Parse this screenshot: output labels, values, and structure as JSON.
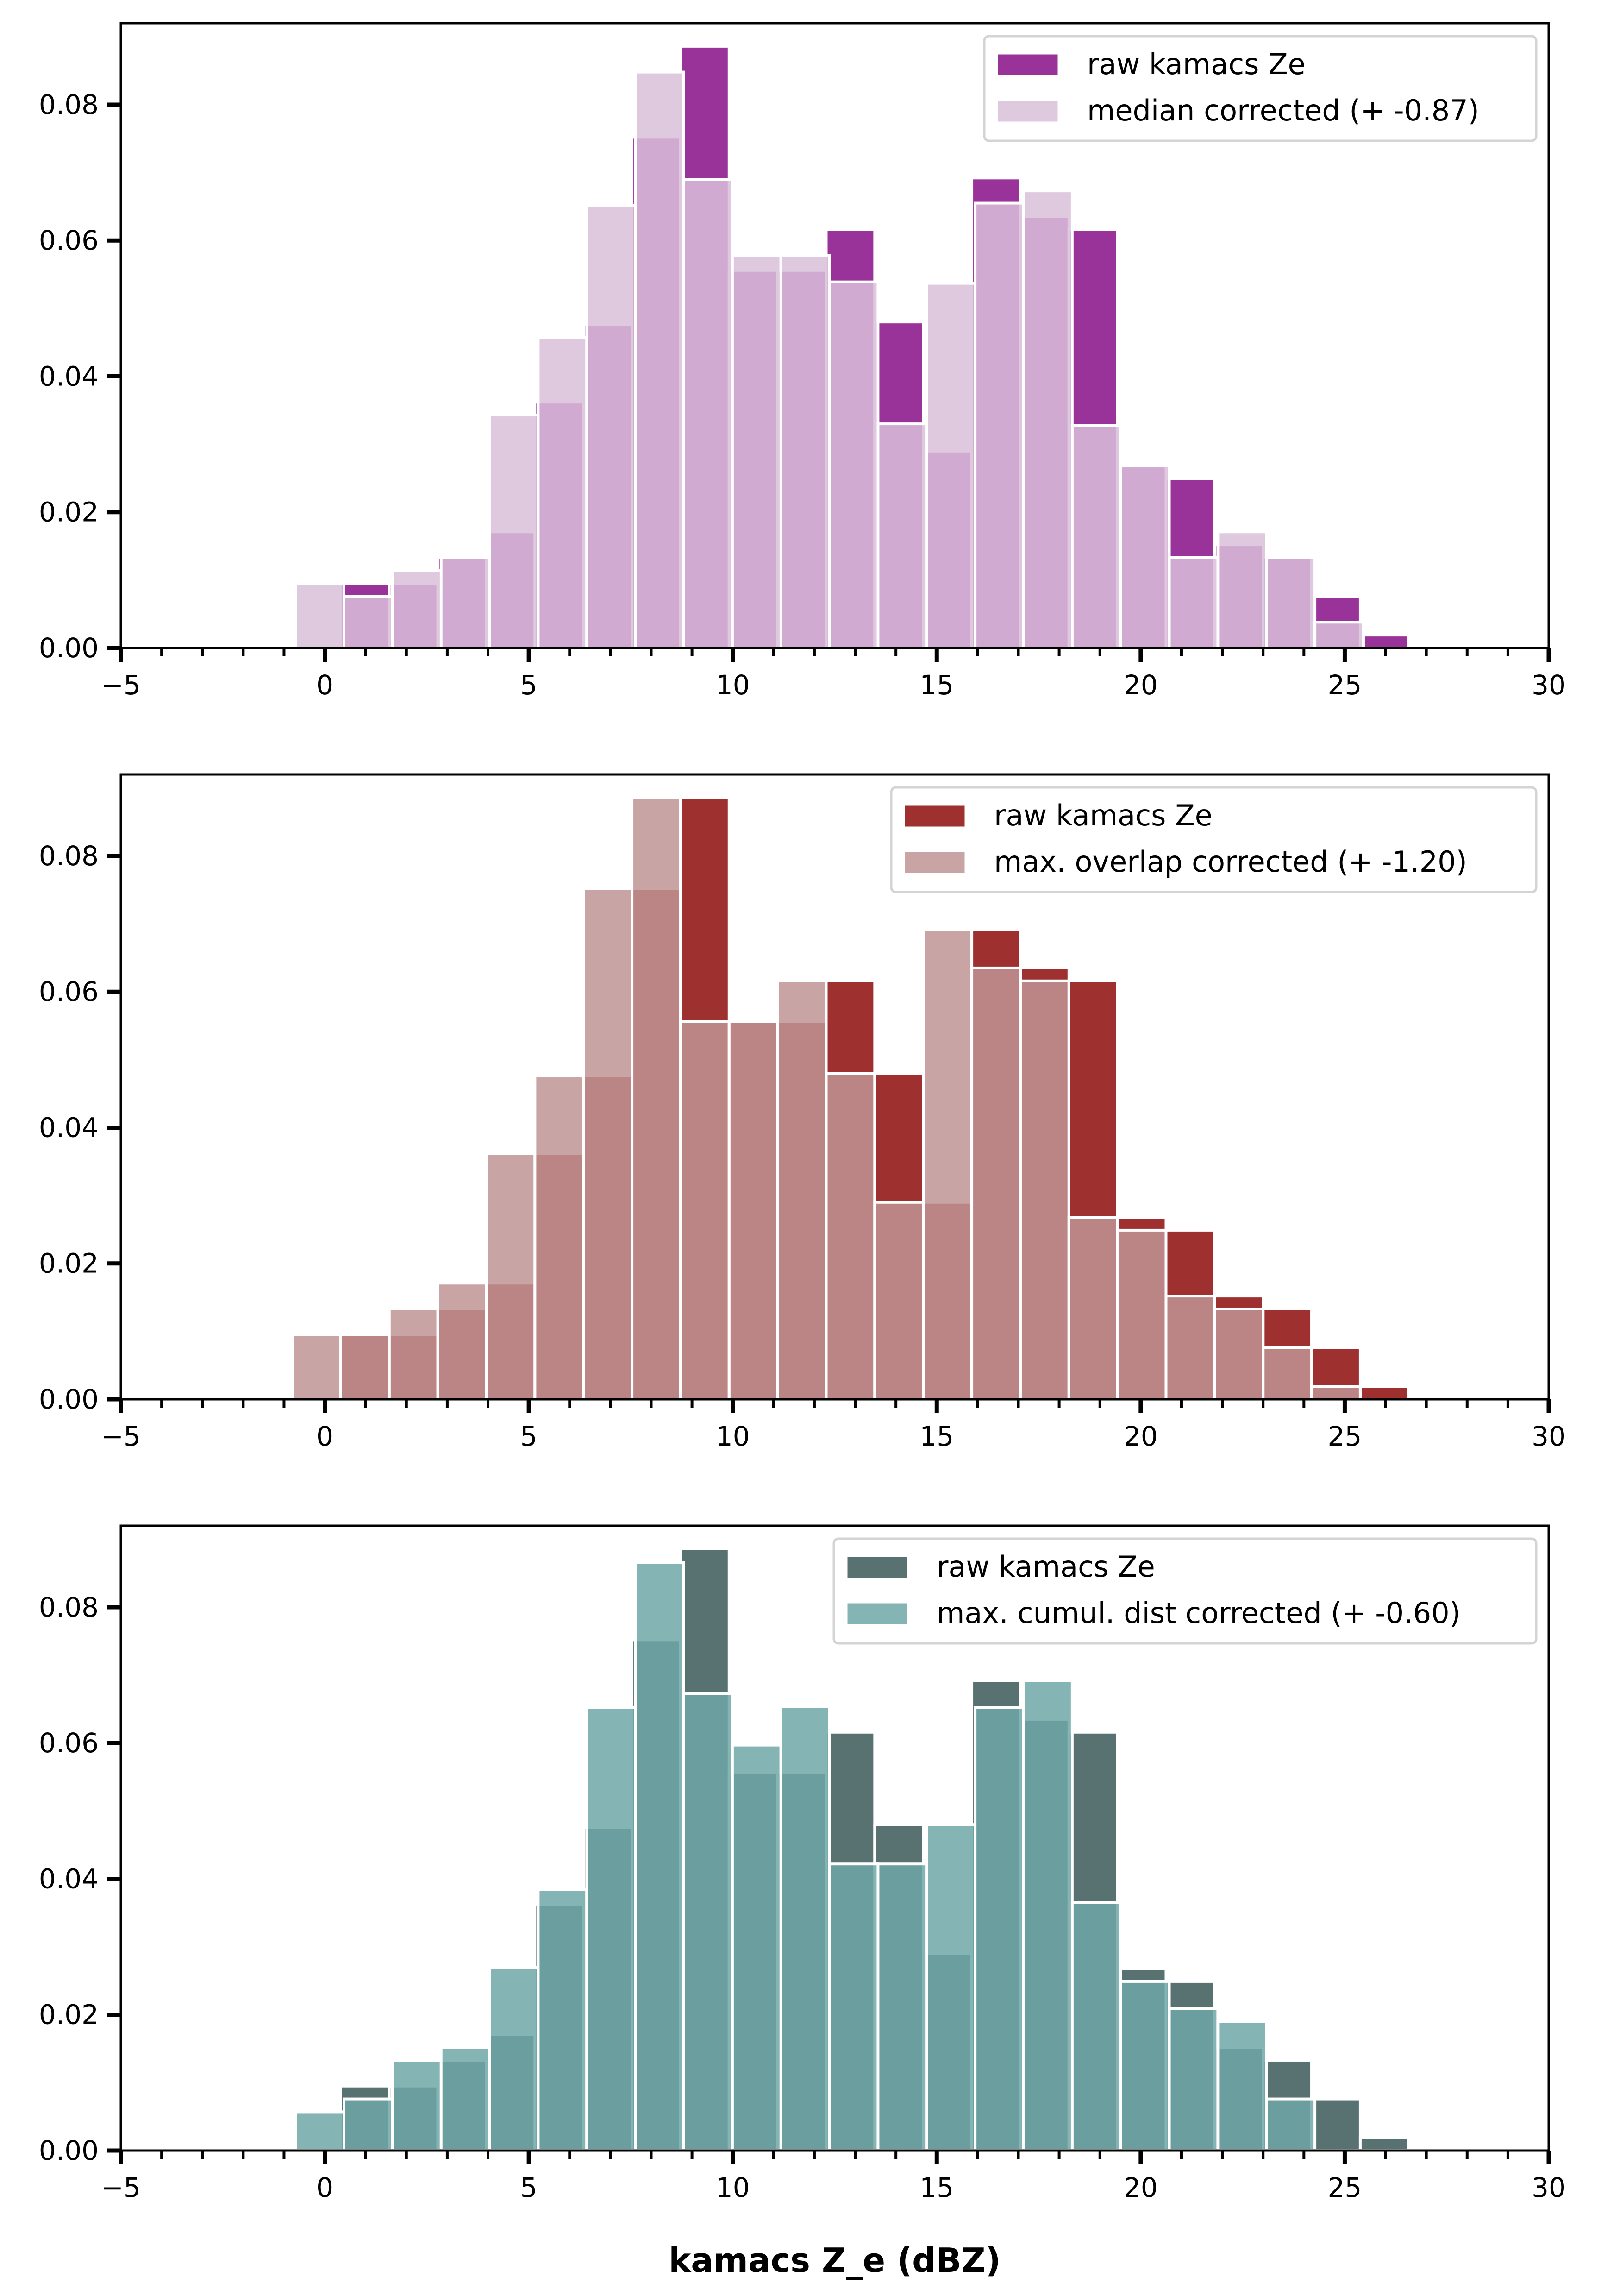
{
  "figure": {
    "xlabel": "kamacs Z_e (dBZ)"
  },
  "chart_data": [
    {
      "type": "bar",
      "title": "",
      "xlabel": "",
      "ylabel": "",
      "xlim": [
        -5,
        30
      ],
      "ylim": [
        0,
        0.092
      ],
      "xticks": [
        -5,
        0,
        5,
        10,
        15,
        20,
        25,
        30
      ],
      "xtick_labels": [
        "−5",
        "0",
        "5",
        "10",
        "15",
        "20",
        "25",
        "30"
      ],
      "yticks": [
        0,
        0.02,
        0.04,
        0.06,
        0.08
      ],
      "ytick_labels": [
        "0.00",
        "0.02",
        "0.04",
        "0.06",
        "0.08"
      ],
      "grid": false,
      "legend_position": "top-right",
      "series": [
        {
          "name": "raw kamacs Ze",
          "color": "#993399",
          "alpha": 1.0,
          "bin_start": 0.39,
          "bin_width": 1.19,
          "values": [
            0.0095,
            0.0095,
            0.0133,
            0.0171,
            0.0362,
            0.0476,
            0.0752,
            0.0886,
            0.0556,
            0.0556,
            0.0616,
            0.048,
            0.029,
            0.0692,
            0.0635,
            0.0616,
            0.0268,
            0.0249,
            0.0152,
            0.0133,
            0.0076,
            0.0019
          ]
        },
        {
          "name": "median corrected (+ -0.87)",
          "color": "#d9bfd9",
          "alpha": 0.85,
          "bin_start": -0.72,
          "bin_width": 1.19,
          "values": [
            0.0095,
            0.0076,
            0.0114,
            0.0133,
            0.0343,
            0.0457,
            0.0652,
            0.0848,
            0.069,
            0.0578,
            0.0578,
            0.0539,
            0.033,
            0.0537,
            0.0655,
            0.0673,
            0.0328,
            0.0268,
            0.0133,
            0.0171,
            0.0133,
            0.0038
          ]
        }
      ]
    },
    {
      "type": "bar",
      "title": "",
      "xlabel": "",
      "ylabel": "",
      "xlim": [
        -5,
        30
      ],
      "ylim": [
        0,
        0.092
      ],
      "xticks": [
        -5,
        0,
        5,
        10,
        15,
        20,
        25,
        30
      ],
      "xtick_labels": [
        "−5",
        "0",
        "5",
        "10",
        "15",
        "20",
        "25",
        "30"
      ],
      "yticks": [
        0,
        0.02,
        0.04,
        0.06,
        0.08
      ],
      "ytick_labels": [
        "0.00",
        "0.02",
        "0.04",
        "0.06",
        "0.08"
      ],
      "grid": false,
      "legend_position": "top-right",
      "series": [
        {
          "name": "raw kamacs Ze",
          "color": "#9e3030",
          "alpha": 1.0,
          "bin_start": 0.39,
          "bin_width": 1.19,
          "values": [
            0.0095,
            0.0095,
            0.0133,
            0.0171,
            0.0362,
            0.0476,
            0.0752,
            0.0886,
            0.0556,
            0.0556,
            0.0616,
            0.048,
            0.029,
            0.0692,
            0.0635,
            0.0616,
            0.0268,
            0.0249,
            0.0152,
            0.0133,
            0.0076,
            0.0019
          ]
        },
        {
          "name": "max. overlap corrected (+ -1.20)",
          "color": "#c09494",
          "alpha": 0.85,
          "bin_start": -0.8,
          "bin_width": 1.19,
          "values": [
            0.0095,
            0.0095,
            0.0133,
            0.0171,
            0.0362,
            0.0476,
            0.0752,
            0.0886,
            0.0556,
            0.0556,
            0.0616,
            0.048,
            0.029,
            0.0692,
            0.0635,
            0.0616,
            0.0268,
            0.0249,
            0.0152,
            0.0133,
            0.0076,
            0.0019
          ]
        }
      ]
    },
    {
      "type": "bar",
      "title": "",
      "xlabel": "kamacs Z_e (dBZ)",
      "ylabel": "",
      "xlim": [
        -5,
        30
      ],
      "ylim": [
        0,
        0.092
      ],
      "xticks": [
        -5,
        0,
        5,
        10,
        15,
        20,
        25,
        30
      ],
      "xtick_labels": [
        "−5",
        "0",
        "5",
        "10",
        "15",
        "20",
        "25",
        "30"
      ],
      "yticks": [
        0,
        0.02,
        0.04,
        0.06,
        0.08
      ],
      "ytick_labels": [
        "0.00",
        "0.02",
        "0.04",
        "0.06",
        "0.08"
      ],
      "grid": false,
      "legend_position": "top-right",
      "series": [
        {
          "name": "raw kamacs Ze",
          "color": "#587272",
          "alpha": 1.0,
          "bin_start": 0.39,
          "bin_width": 1.19,
          "values": [
            0.0095,
            0.0095,
            0.0133,
            0.0171,
            0.0362,
            0.0476,
            0.0752,
            0.0886,
            0.0556,
            0.0556,
            0.0616,
            0.048,
            0.029,
            0.0692,
            0.0635,
            0.0616,
            0.0268,
            0.0249,
            0.0152,
            0.0133,
            0.0076,
            0.0019
          ]
        },
        {
          "name": "max. cumul. dist corrected (+ -0.60)",
          "color": "#6fa7a7",
          "alpha": 0.85,
          "bin_start": -0.72,
          "bin_width": 1.19,
          "values": [
            0.0057,
            0.0076,
            0.0133,
            0.0152,
            0.027,
            0.0384,
            0.0652,
            0.0866,
            0.0673,
            0.0597,
            0.0654,
            0.0422,
            0.0422,
            0.048,
            0.0652,
            0.0692,
            0.0365,
            0.0249,
            0.0209,
            0.019,
            0.0076
          ]
        }
      ]
    }
  ]
}
